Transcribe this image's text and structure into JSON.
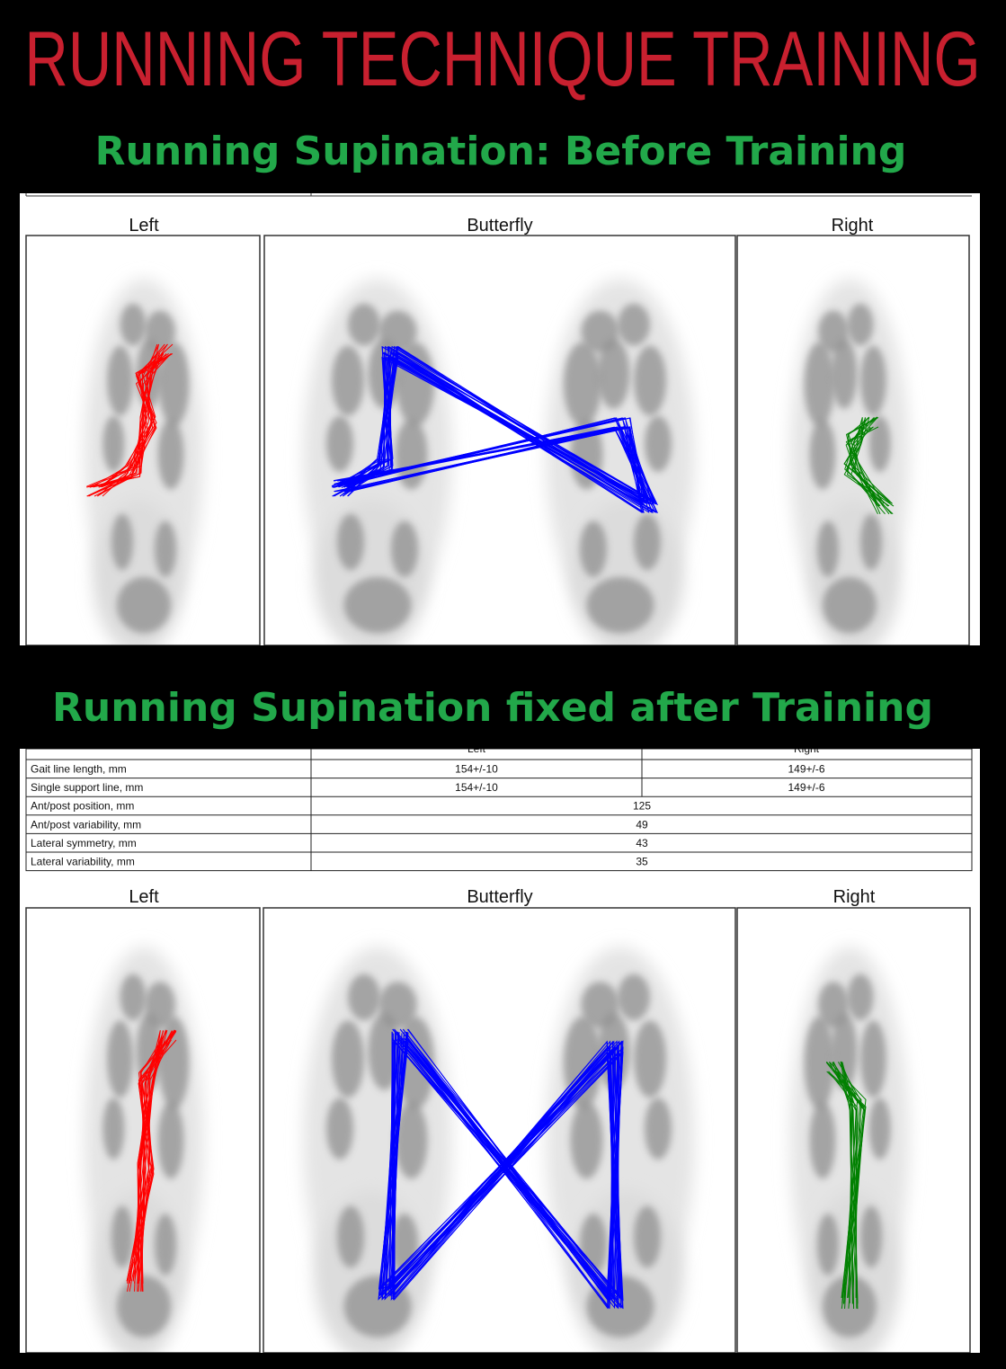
{
  "header": {
    "title": "RUNNING TECHNIQUE TRAINING"
  },
  "sections": [
    {
      "heading": "Running Supination: Before Training",
      "panels": [
        "Left",
        "Butterfly",
        "Right"
      ]
    },
    {
      "heading": "Running Supination fixed after Training",
      "table": {
        "columns": [
          "Left",
          "Right"
        ],
        "rows": [
          [
            "Gait line length, mm",
            "154+/-10",
            "149+/-6"
          ],
          [
            "Single support line, mm",
            "154+/-10",
            "149+/-6"
          ],
          [
            "Ant/post position, mm",
            "125"
          ],
          [
            "Ant/post variability, mm",
            "49"
          ],
          [
            "Lateral symmetry, mm",
            "43"
          ],
          [
            "Lateral variability, mm",
            "35"
          ]
        ]
      },
      "panels": [
        "Left",
        "Butterfly",
        "Right"
      ]
    }
  ]
}
